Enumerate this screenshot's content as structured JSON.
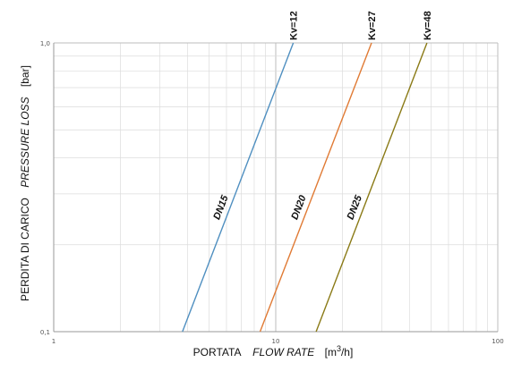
{
  "chart_data": {
    "type": "line",
    "x_scale": "log",
    "y_scale": "log",
    "xlim": [
      1,
      100
    ],
    "ylim": [
      0.1,
      1.0
    ],
    "grid": true,
    "x_ticks": [
      {
        "value": 1,
        "label": "1"
      },
      {
        "value": 10,
        "label": "10"
      },
      {
        "value": 100,
        "label": "100"
      }
    ],
    "y_ticks": [
      {
        "value": 0.1,
        "label": "0,1"
      },
      {
        "value": 1.0,
        "label": "1,0"
      }
    ],
    "xlabel": {
      "part1": "PORTATA",
      "part2": "FLOW RATE",
      "unit_prefix": "[m",
      "unit_sup": "3",
      "unit_suffix": "/h]"
    },
    "ylabel": {
      "part1": "PERDITA DI CARICO",
      "part2": "PRESSURE LOSS",
      "unit": "[bar]"
    },
    "series": [
      {
        "name": "DN15",
        "kv_label": "Kv=12",
        "color": "#4f8fc0",
        "x": [
          3.8,
          12.0
        ],
        "y": [
          0.1,
          1.0
        ]
      },
      {
        "name": "DN20",
        "kv_label": "Kv=27",
        "color": "#e07a34",
        "x": [
          8.5,
          27.0
        ],
        "y": [
          0.1,
          1.0
        ]
      },
      {
        "name": "DN25",
        "kv_label": "Kv=48",
        "color": "#8a7a16",
        "x": [
          15.2,
          48.0
        ],
        "y": [
          0.1,
          1.0
        ]
      }
    ]
  }
}
